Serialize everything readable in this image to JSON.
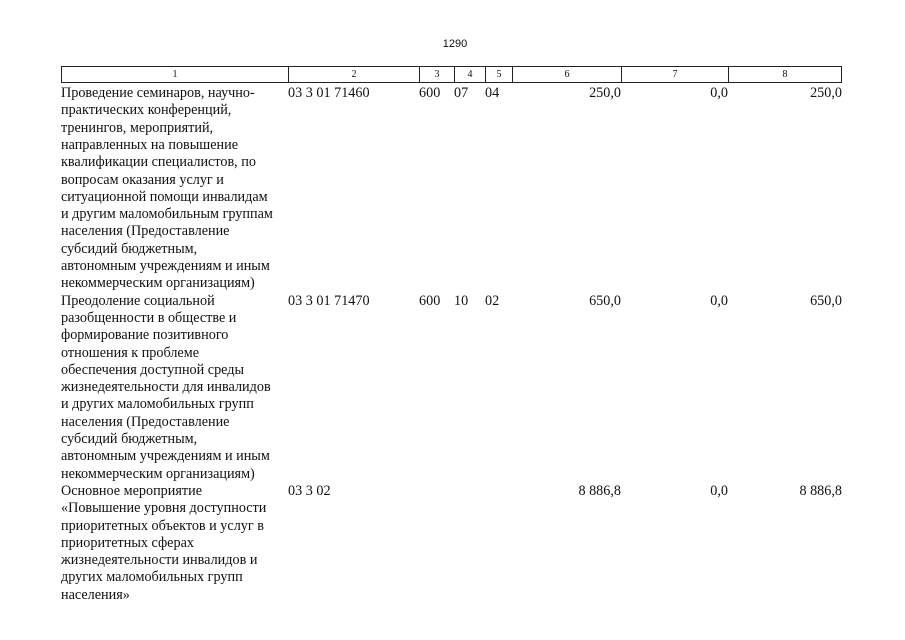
{
  "page_number": "1290",
  "table": {
    "header": [
      "1",
      "2",
      "3",
      "4",
      "5",
      "6",
      "7",
      "8"
    ],
    "rows": [
      {
        "name_lines": [
          "Проведение семинаров, научно-",
          "практических конференций,",
          "тренингов, мероприятий,",
          "направленных на повышение",
          "квалификации специалистов, по",
          "вопросам оказания услуг и",
          "ситуационной помощи инвалидам",
          "и другим маломобильным группам",
          "населения (Предоставление",
          "субсидий бюджетным,",
          "автономным учреждениям и иным",
          "некоммерческим организациям)"
        ],
        "cells": [
          "03 3 01 71460",
          "600",
          "07",
          "04",
          "250,0",
          "0,0",
          "250,0"
        ]
      },
      {
        "name_lines": [
          "Преодоление социальной",
          "разобщенности в обществе и",
          "формирование позитивного",
          "отношения к проблеме",
          "обеспечения доступной среды",
          "жизнедеятельности для инвалидов",
          "и других маломобильных групп",
          "населения (Предоставление",
          "субсидий бюджетным,",
          "автономным учреждениям и иным",
          "некоммерческим организациям)"
        ],
        "cells": [
          "03 3 01 71470",
          "600",
          "10",
          "02",
          "650,0",
          "0,0",
          "650,0"
        ]
      },
      {
        "name_lines": [
          "Основное мероприятие",
          "«Повышение уровня доступности",
          "приоритетных объектов и услуг в",
          "приоритетных сферах",
          "жизнедеятельности инвалидов и",
          "других маломобильных групп",
          "населения»"
        ],
        "cells": [
          "03 3 02",
          "",
          "",
          "",
          "8 886,8",
          "0,0",
          "8 886,8"
        ]
      }
    ]
  }
}
